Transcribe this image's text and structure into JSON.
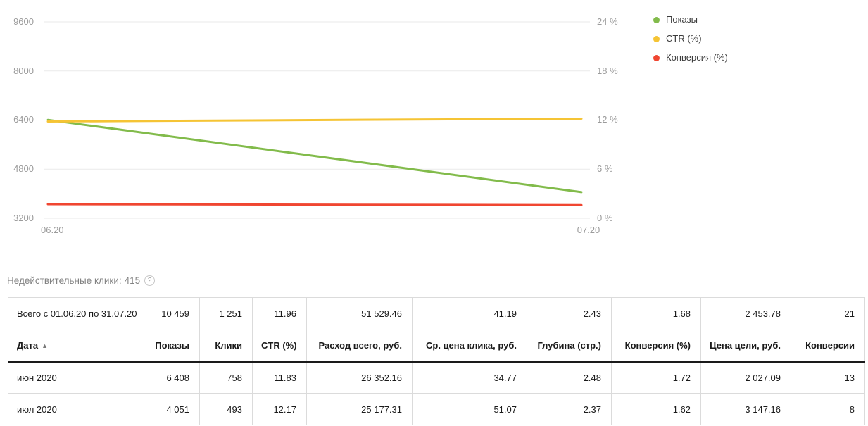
{
  "chart_data": {
    "type": "line",
    "x": [
      "06.20",
      "07.20"
    ],
    "series": [
      {
        "name": "Показы",
        "axis": "left",
        "color": "#82BB4B",
        "values": [
          6408,
          4051
        ]
      },
      {
        "name": "CTR (%)",
        "axis": "right",
        "color": "#F5C435",
        "values": [
          11.83,
          12.17
        ]
      },
      {
        "name": "Конверсия (%)",
        "axis": "right",
        "color": "#F04631",
        "values": [
          1.72,
          1.62
        ]
      }
    ],
    "left_axis": {
      "min": 3200,
      "max": 9600,
      "ticks": [
        "9600",
        "8000",
        "6400",
        "4800",
        "3200"
      ]
    },
    "right_axis": {
      "min": 0,
      "max": 24,
      "ticks": [
        "24 %",
        "18 %",
        "12 %",
        "6 %",
        "0 %"
      ]
    },
    "grid": true,
    "legend_position": "top-right",
    "title": ""
  },
  "invalid_clicks": {
    "label": "Недействительные клики:",
    "value": "415",
    "help": "?"
  },
  "table": {
    "totals": {
      "label": "Всего с 01.06.20 по 31.07.20",
      "values": [
        "10 459",
        "1 251",
        "11.96",
        "51 529.46",
        "41.19",
        "2.43",
        "1.68",
        "2 453.78",
        "21"
      ]
    },
    "headers": [
      "Дата",
      "Показы",
      "Клики",
      "CTR (%)",
      "Расход всего, руб.",
      "Ср. цена клика, руб.",
      "Глубина (стр.)",
      "Конверсия (%)",
      "Цена цели, руб.",
      "Конверсии"
    ],
    "sort_indicator": "▲",
    "rows": [
      {
        "label": "июн 2020",
        "values": [
          "6 408",
          "758",
          "11.83",
          "26 352.16",
          "34.77",
          "2.48",
          "1.72",
          "2 027.09",
          "13"
        ]
      },
      {
        "label": "июл 2020",
        "values": [
          "4 051",
          "493",
          "12.17",
          "25 177.31",
          "51.07",
          "2.37",
          "1.62",
          "3 147.16",
          "8"
        ]
      }
    ]
  }
}
